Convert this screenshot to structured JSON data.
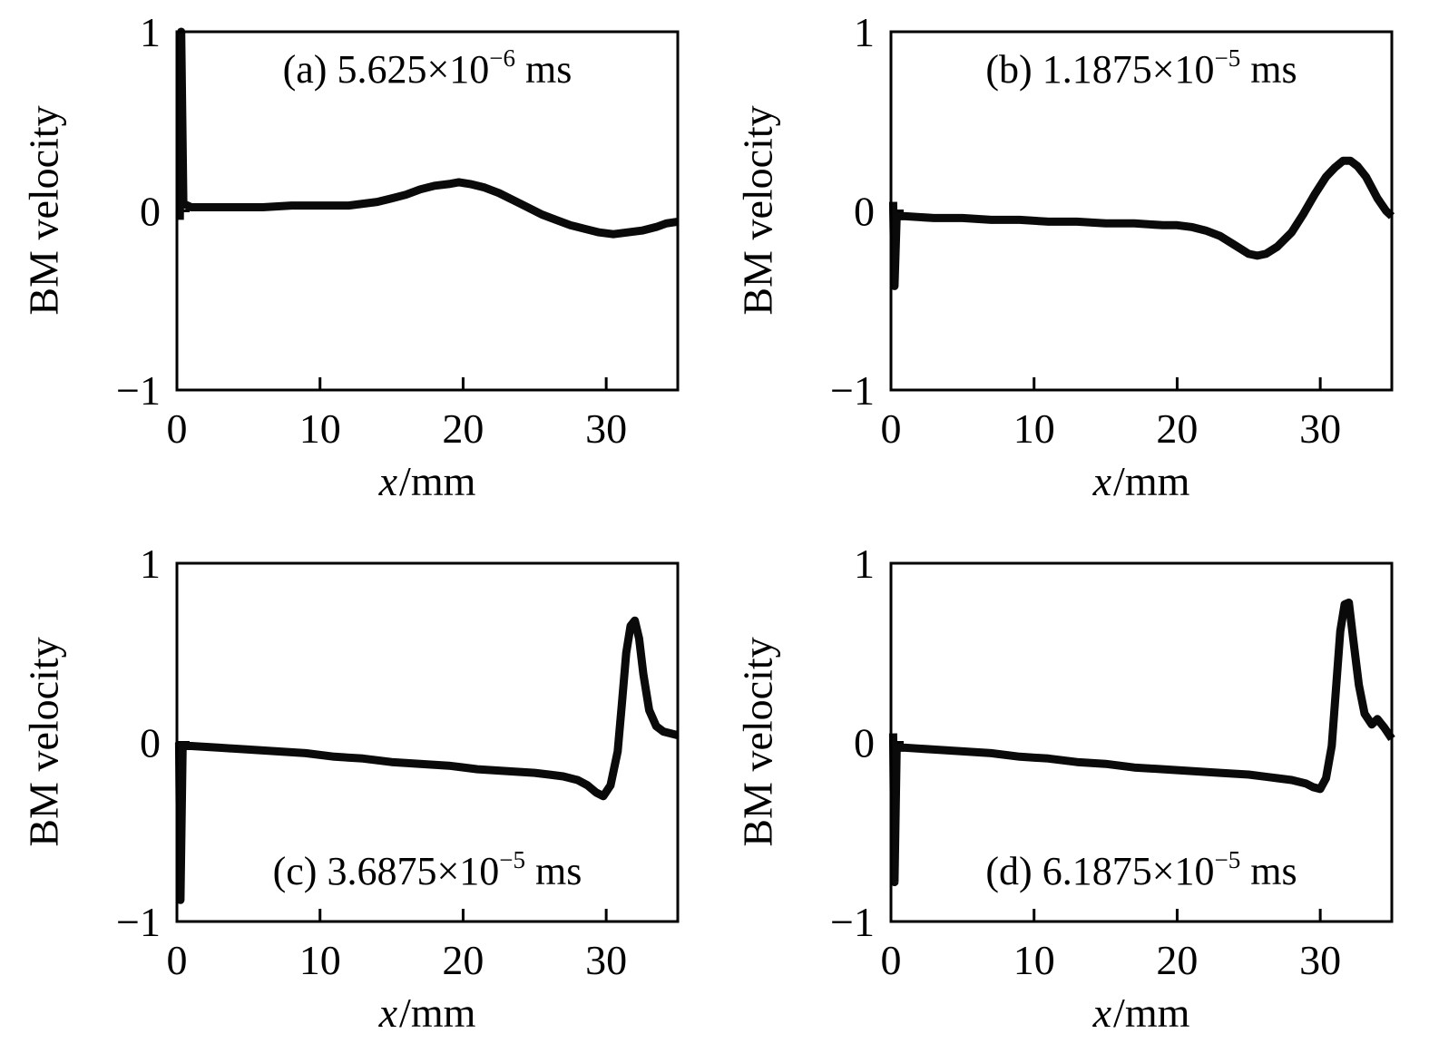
{
  "page": {
    "background": "#ffffff",
    "curve_color": "#0a0a0a"
  },
  "chart_data": [
    {
      "type": "line",
      "panel": "a",
      "title": "(a) 5.625×10⁻⁶ ms",
      "title_parts": {
        "prefix": "(a) 5.625×10",
        "exponent": "−6",
        "suffix": " ms"
      },
      "title_position": "top",
      "xlabel": "x/mm",
      "xlabel_parts": {
        "var": "x",
        "rest": "/mm"
      },
      "ylabel": "BM velocity",
      "xlim": [
        0,
        35
      ],
      "ylim": [
        -1,
        1
      ],
      "xticks": [
        0,
        10,
        20,
        30
      ],
      "xticklabels": [
        "0",
        "10",
        "20",
        "30"
      ],
      "yticks": [
        -1,
        0,
        1
      ],
      "yticklabels": [
        "−1",
        "0",
        "1"
      ],
      "grid": false,
      "legend": null,
      "line_color": "#0a0a0a",
      "line_width": 9,
      "x": [
        0.2,
        0.3,
        0.45,
        1,
        2,
        4,
        6,
        8,
        10,
        12,
        13,
        14,
        15,
        16,
        17,
        18,
        19,
        19.7,
        20.5,
        21.5,
        22.5,
        23.5,
        24.5,
        25.5,
        26.5,
        27.5,
        28.5,
        29.5,
        30.5,
        31.5,
        32.5,
        33.5,
        34.2,
        35
      ],
      "y": [
        -0.05,
        1.0,
        0.04,
        0.02,
        0.02,
        0.02,
        0.02,
        0.03,
        0.03,
        0.03,
        0.04,
        0.05,
        0.07,
        0.09,
        0.12,
        0.14,
        0.15,
        0.16,
        0.15,
        0.13,
        0.1,
        0.06,
        0.02,
        -0.02,
        -0.05,
        -0.08,
        -0.1,
        -0.12,
        -0.13,
        -0.12,
        -0.11,
        -0.09,
        -0.07,
        -0.06
      ]
    },
    {
      "type": "line",
      "panel": "b",
      "title": "(b) 1.1875×10⁻⁵ ms",
      "title_parts": {
        "prefix": "(b) 1.1875×10",
        "exponent": "−5",
        "suffix": " ms"
      },
      "title_position": "top",
      "xlabel": "x/mm",
      "xlabel_parts": {
        "var": "x",
        "rest": "/mm"
      },
      "ylabel": "BM velocity",
      "xlim": [
        0,
        35
      ],
      "ylim": [
        -1,
        1
      ],
      "xticks": [
        0,
        10,
        20,
        30
      ],
      "xticklabels": [
        "0",
        "10",
        "20",
        "30"
      ],
      "yticks": [
        -1,
        0,
        1
      ],
      "yticklabels": [
        "−1",
        "0",
        "1"
      ],
      "grid": false,
      "legend": null,
      "line_color": "#0a0a0a",
      "line_width": 9,
      "x": [
        0.15,
        0.25,
        0.4,
        1,
        3,
        5,
        7,
        9,
        11,
        13,
        15,
        17,
        19,
        20,
        21,
        22,
        23,
        24,
        25,
        25.6,
        26.2,
        27,
        28,
        28.8,
        29.6,
        30.4,
        31,
        31.6,
        32.1,
        32.6,
        33.2,
        34,
        34.6,
        35
      ],
      "y": [
        0.05,
        -0.42,
        -0.03,
        -0.03,
        -0.04,
        -0.04,
        -0.05,
        -0.05,
        -0.06,
        -0.06,
        -0.07,
        -0.07,
        -0.08,
        -0.08,
        -0.09,
        -0.11,
        -0.14,
        -0.19,
        -0.24,
        -0.25,
        -0.24,
        -0.2,
        -0.12,
        -0.02,
        0.09,
        0.19,
        0.24,
        0.28,
        0.28,
        0.25,
        0.19,
        0.07,
        0.0,
        -0.03
      ]
    },
    {
      "type": "line",
      "panel": "c",
      "title": "(c) 3.6875×10⁻⁵ ms",
      "title_parts": {
        "prefix": "(c) 3.6875×10",
        "exponent": "−5",
        "suffix": " ms"
      },
      "title_position": "bottom",
      "xlabel": "x/mm",
      "xlabel_parts": {
        "var": "x",
        "rest": "/mm"
      },
      "ylabel": "BM velocity",
      "xlim": [
        0,
        35
      ],
      "ylim": [
        -1,
        1
      ],
      "xticks": [
        0,
        10,
        20,
        30
      ],
      "xticklabels": [
        "0",
        "10",
        "20",
        "30"
      ],
      "yticks": [
        -1,
        0,
        1
      ],
      "yticklabels": [
        "−1",
        "0",
        "1"
      ],
      "grid": false,
      "legend": null,
      "line_color": "#0a0a0a",
      "line_width": 9,
      "x": [
        0.15,
        0.25,
        0.4,
        1,
        3,
        5,
        7,
        9,
        11,
        13,
        15,
        17,
        19,
        21,
        23,
        25,
        26,
        27,
        28,
        28.7,
        29.3,
        29.8,
        30.3,
        30.8,
        31.1,
        31.4,
        31.7,
        32,
        32.3,
        32.6,
        33,
        33.5,
        34,
        34.5,
        35
      ],
      "y": [
        0.0,
        -0.88,
        -0.02,
        -0.02,
        -0.03,
        -0.04,
        -0.05,
        -0.06,
        -0.08,
        -0.09,
        -0.11,
        -0.12,
        -0.13,
        -0.15,
        -0.16,
        -0.17,
        -0.18,
        -0.19,
        -0.21,
        -0.24,
        -0.28,
        -0.3,
        -0.24,
        -0.05,
        0.22,
        0.5,
        0.65,
        0.68,
        0.58,
        0.38,
        0.18,
        0.09,
        0.06,
        0.05,
        0.04
      ]
    },
    {
      "type": "line",
      "panel": "d",
      "title": "(d) 6.1875×10⁻⁵ ms",
      "title_parts": {
        "prefix": "(d) 6.1875×10",
        "exponent": "−5",
        "suffix": " ms"
      },
      "title_position": "bottom",
      "xlabel": "x/mm",
      "xlabel_parts": {
        "var": "x",
        "rest": "/mm"
      },
      "ylabel": "BM velocity",
      "xlim": [
        0,
        35
      ],
      "ylim": [
        -1,
        1
      ],
      "xticks": [
        0,
        10,
        20,
        30
      ],
      "xticklabels": [
        "0",
        "10",
        "20",
        "30"
      ],
      "yticks": [
        -1,
        0,
        1
      ],
      "yticklabels": [
        "−1",
        "0",
        "1"
      ],
      "grid": false,
      "legend": null,
      "line_color": "#0a0a0a",
      "line_width": 9,
      "x": [
        0.15,
        0.25,
        0.4,
        1,
        3,
        5,
        7,
        9,
        11,
        13,
        15,
        17,
        19,
        21,
        23,
        25,
        27,
        28,
        29,
        29.5,
        30,
        30.4,
        30.8,
        31.1,
        31.4,
        31.7,
        32,
        32.3,
        32.7,
        33.1,
        33.6,
        34,
        34.5,
        35
      ],
      "y": [
        0.05,
        -0.78,
        -0.03,
        -0.03,
        -0.04,
        -0.05,
        -0.06,
        -0.08,
        -0.09,
        -0.11,
        -0.12,
        -0.14,
        -0.15,
        -0.16,
        -0.17,
        -0.18,
        -0.2,
        -0.21,
        -0.23,
        -0.25,
        -0.26,
        -0.2,
        -0.02,
        0.3,
        0.62,
        0.77,
        0.78,
        0.58,
        0.32,
        0.16,
        0.1,
        0.13,
        0.08,
        0.02
      ]
    }
  ]
}
